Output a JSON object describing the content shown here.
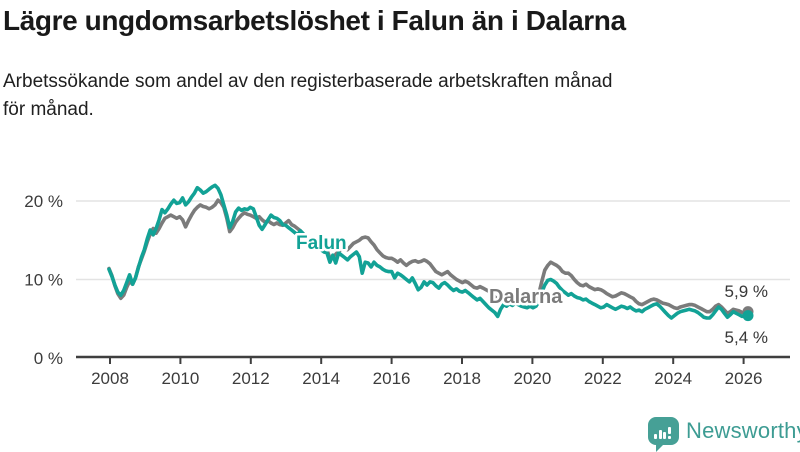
{
  "header": {
    "title": "Lägre ungdomsarbetslöshet i Falun än i Dalarna",
    "subtitle_lines": [
      "Arbetssökande som andel av den registerbaserade arbetskraften månad",
      "för månad."
    ]
  },
  "footer": {
    "wordmark": "Newsworthy",
    "logo_icon": "bar-chart-speech-bubble",
    "brand_color": "#46A096"
  },
  "colors": {
    "falun": "#12A296",
    "dalarna": "#7B7B7B",
    "axis": "#3F3F3F",
    "grid": "#E3E3E3",
    "tick_text": "#3C3C3C",
    "end_label_text": "#383838"
  },
  "chart_data": {
    "type": "line",
    "frequency": "monthly",
    "start": "2008-01",
    "end": "2026-02",
    "unit": "%",
    "ylim": [
      0,
      24
    ],
    "grid": true,
    "legend": "inline-labels",
    "yticks": [
      {
        "value": 0,
        "label": "0 %"
      },
      {
        "value": 10,
        "label": "10 %"
      },
      {
        "value": 20,
        "label": "20 %"
      }
    ],
    "xticks": [
      2008,
      2010,
      2012,
      2014,
      2016,
      2018,
      2020,
      2022,
      2024,
      2026
    ],
    "series": [
      {
        "name": "Dalarna",
        "color": "#7B7B7B",
        "end_label": "5,9 %",
        "values": [
          11.4,
          10.5,
          9.2,
          8.2,
          7.6,
          8.0,
          9.0,
          9.8,
          9.4,
          10.2,
          11.6,
          12.6,
          13.6,
          14.8,
          15.8,
          16.5,
          15.9,
          16.5,
          17.2,
          17.8,
          18.0,
          18.2,
          18.0,
          17.8,
          18.0,
          17.6,
          16.7,
          17.5,
          18.2,
          18.8,
          19.2,
          19.5,
          19.3,
          19.2,
          19.0,
          19.2,
          19.5,
          20.1,
          19.8,
          19.2,
          17.8,
          16.1,
          16.6,
          17.3,
          17.8,
          18.2,
          18.5,
          18.3,
          18.2,
          18.0,
          17.8,
          18.0,
          17.6,
          17.3,
          17.5,
          17.2,
          17.0,
          17.2,
          17.0,
          16.9,
          17.2,
          17.5,
          17.0,
          16.8,
          16.5,
          16.2,
          15.8,
          15.4,
          15.0,
          14.8,
          14.6,
          14.8,
          14.6,
          14.4,
          13.8,
          12.7,
          12.9,
          13.2,
          13.6,
          13.9,
          14.1,
          13.8,
          14.2,
          14.6,
          14.8,
          15.0,
          15.3,
          15.4,
          15.3,
          14.8,
          14.4,
          13.8,
          13.4,
          13.0,
          12.8,
          12.7,
          12.7,
          12.5,
          12.2,
          12.5,
          12.1,
          11.8,
          12.1,
          12.3,
          12.4,
          12.2,
          12.3,
          12.5,
          12.3,
          12.0,
          11.5,
          11.0,
          10.8,
          10.6,
          10.8,
          11.0,
          10.6,
          10.3,
          10.0,
          9.8,
          9.6,
          9.8,
          9.6,
          9.3,
          9.0,
          8.9,
          9.1,
          8.9,
          8.7,
          8.5,
          8.2,
          7.8,
          7.4,
          7.6,
          7.9,
          7.7,
          7.9,
          7.8,
          8.0,
          7.8,
          7.6,
          7.4,
          7.2,
          7.3,
          7.2,
          7.4,
          8.2,
          9.8,
          11.2,
          11.8,
          12.2,
          12.0,
          11.8,
          11.5,
          11.0,
          10.8,
          10.8,
          10.5,
          10.0,
          9.6,
          9.3,
          9.2,
          9.4,
          9.1,
          8.9,
          8.7,
          8.8,
          8.7,
          8.5,
          8.2,
          8.0,
          7.8,
          7.9,
          8.1,
          8.3,
          8.2,
          8.0,
          7.8,
          7.6,
          7.2,
          6.9,
          6.8,
          7.0,
          7.2,
          7.4,
          7.5,
          7.4,
          7.2,
          7.0,
          6.9,
          6.8,
          6.6,
          6.4,
          6.3,
          6.5,
          6.6,
          6.7,
          6.8,
          6.8,
          6.7,
          6.5,
          6.3,
          6.1,
          5.9,
          5.9,
          6.2,
          6.6,
          6.8,
          6.5,
          6.1,
          5.7,
          5.9,
          6.2,
          6.1,
          6.0,
          5.8,
          5.8,
          5.9
        ]
      },
      {
        "name": "Falun",
        "color": "#12A296",
        "end_label": "5,4 %",
        "values": [
          11.3,
          10.4,
          9.3,
          8.4,
          8.0,
          8.6,
          9.6,
          10.6,
          9.4,
          10.2,
          11.5,
          12.8,
          13.8,
          15.2,
          16.3,
          15.7,
          16.5,
          17.6,
          18.9,
          18.5,
          19.0,
          19.6,
          20.1,
          19.7,
          19.8,
          20.4,
          19.5,
          19.9,
          20.5,
          21.0,
          21.7,
          21.4,
          21.0,
          21.2,
          21.5,
          21.8,
          22.0,
          21.6,
          20.8,
          19.5,
          18.2,
          16.6,
          17.4,
          18.6,
          19.1,
          18.8,
          19.0,
          18.9,
          19.2,
          19.0,
          18.0,
          16.9,
          16.4,
          17.0,
          17.6,
          18.2,
          17.9,
          17.8,
          17.5,
          17.0,
          16.9,
          16.6,
          16.3,
          16.0,
          15.7,
          16.2,
          15.8,
          15.3,
          14.9,
          14.5,
          14.2,
          13.9,
          13.8,
          13.5,
          13.4,
          12.2,
          13.1,
          12.1,
          13.4,
          13.1,
          12.8,
          12.5,
          12.9,
          13.2,
          13.5,
          12.9,
          10.8,
          12.2,
          12.1,
          11.6,
          12.2,
          11.8,
          11.6,
          11.3,
          11.1,
          11.0,
          11.0,
          10.2,
          10.8,
          10.6,
          10.3,
          10.0,
          9.7,
          10.2,
          9.5,
          8.7,
          9.0,
          9.7,
          9.3,
          9.7,
          9.6,
          9.2,
          8.9,
          9.4,
          9.6,
          9.3,
          8.9,
          8.6,
          8.8,
          8.5,
          8.4,
          8.6,
          8.3,
          8.0,
          7.7,
          7.4,
          7.6,
          7.2,
          6.8,
          6.4,
          6.1,
          5.8,
          5.3,
          6.2,
          6.8,
          6.6,
          6.9,
          6.7,
          7.0,
          6.8,
          6.6,
          6.5,
          6.4,
          6.6,
          6.4,
          6.6,
          7.2,
          8.4,
          9.3,
          9.9,
          10.0,
          9.8,
          9.5,
          9.0,
          8.6,
          8.3,
          8.0,
          8.2,
          7.9,
          7.7,
          7.6,
          7.4,
          7.5,
          7.2,
          7.0,
          6.8,
          6.6,
          6.4,
          6.5,
          6.8,
          6.6,
          6.4,
          6.2,
          6.4,
          6.6,
          6.5,
          6.3,
          6.5,
          6.2,
          6.0,
          6.1,
          5.9,
          6.2,
          6.4,
          6.6,
          6.8,
          6.9,
          6.6,
          6.2,
          5.8,
          5.4,
          5.1,
          5.4,
          5.7,
          5.9,
          6.0,
          6.1,
          6.2,
          6.1,
          6.0,
          5.8,
          5.5,
          5.2,
          5.1,
          5.1,
          5.5,
          6.0,
          6.5,
          6.2,
          5.7,
          5.2,
          5.5,
          5.9,
          5.7,
          5.5,
          5.3,
          5.5,
          5.4
        ]
      }
    ]
  }
}
